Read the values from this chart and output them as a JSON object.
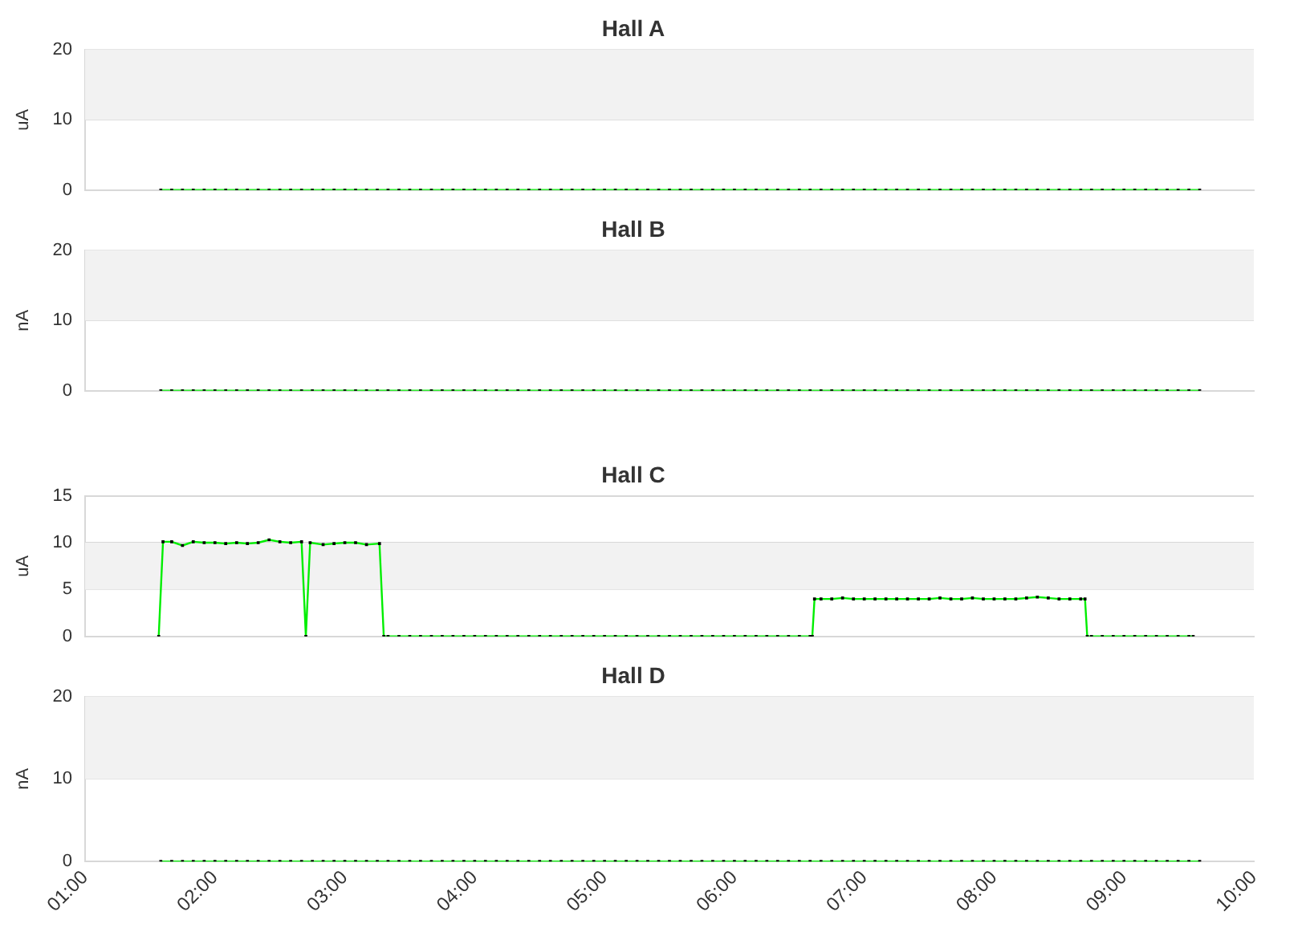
{
  "chart_data": [
    {
      "type": "line",
      "title": "Hall A",
      "ylabel": "uA",
      "ylim": [
        0,
        20
      ],
      "yticks": [
        0,
        10,
        20
      ],
      "xlim": [
        1,
        10
      ],
      "bands": [
        {
          "axis": "y",
          "from": 10,
          "to": 20,
          "color": "#f2f2f2"
        }
      ],
      "grid": "y",
      "marker": "square",
      "tick_labels": "y",
      "x": [
        1.583,
        1.667,
        1.75,
        1.833,
        1.917,
        2,
        2.083,
        2.167,
        2.25,
        2.333,
        2.417,
        2.5,
        2.583,
        2.667,
        2.75,
        2.833,
        2.917,
        3,
        3.083,
        3.167,
        3.25,
        3.333,
        3.417,
        3.5,
        3.583,
        3.667,
        3.75,
        3.833,
        3.917,
        4,
        4.083,
        4.167,
        4.25,
        4.333,
        4.417,
        4.5,
        4.583,
        4.667,
        4.75,
        4.833,
        4.917,
        5,
        5.083,
        5.167,
        5.25,
        5.333,
        5.417,
        5.5,
        5.583,
        5.667,
        5.75,
        5.833,
        5.917,
        6,
        6.083,
        6.167,
        6.25,
        6.333,
        6.417,
        6.5,
        6.583,
        6.667,
        6.75,
        6.833,
        6.917,
        7,
        7.083,
        7.167,
        7.25,
        7.333,
        7.417,
        7.5,
        7.583,
        7.667,
        7.75,
        7.833,
        7.917,
        8,
        8.083,
        8.167,
        8.25,
        8.333,
        8.417,
        8.5,
        8.583,
        8.667,
        8.75,
        8.833,
        8.917,
        9,
        9.083,
        9.167,
        9.25,
        9.333,
        9.417,
        9.5,
        9.583
      ],
      "series": [
        {
          "color": "#00ee00",
          "values": [
            0,
            0,
            0,
            0,
            0,
            0,
            0,
            0,
            0,
            0,
            0,
            0,
            0,
            0,
            0,
            0,
            0,
            0,
            0,
            0,
            0,
            0,
            0,
            0,
            0,
            0,
            0,
            0,
            0,
            0,
            0,
            0,
            0,
            0,
            0,
            0,
            0,
            0,
            0,
            0,
            0,
            0,
            0,
            0,
            0,
            0,
            0,
            0,
            0,
            0,
            0,
            0,
            0,
            0,
            0,
            0,
            0,
            0,
            0,
            0,
            0,
            0,
            0,
            0,
            0,
            0,
            0,
            0,
            0,
            0,
            0,
            0,
            0,
            0,
            0,
            0,
            0,
            0,
            0,
            0,
            0,
            0,
            0,
            0,
            0,
            0,
            0,
            0,
            0,
            0,
            0,
            0,
            0,
            0,
            0,
            0,
            0
          ]
        }
      ]
    },
    {
      "type": "line",
      "title": "Hall B",
      "ylabel": "nA",
      "ylim": [
        0,
        20
      ],
      "yticks": [
        0,
        10,
        20
      ],
      "xlim": [
        1,
        10
      ],
      "bands": [
        {
          "axis": "y",
          "from": 10,
          "to": 20,
          "color": "#f2f2f2"
        }
      ],
      "grid": "y",
      "marker": "square",
      "tick_labels": "y",
      "x": [
        1.583,
        1.667,
        1.75,
        1.833,
        1.917,
        2,
        2.083,
        2.167,
        2.25,
        2.333,
        2.417,
        2.5,
        2.583,
        2.667,
        2.75,
        2.833,
        2.917,
        3,
        3.083,
        3.167,
        3.25,
        3.333,
        3.417,
        3.5,
        3.583,
        3.667,
        3.75,
        3.833,
        3.917,
        4,
        4.083,
        4.167,
        4.25,
        4.333,
        4.417,
        4.5,
        4.583,
        4.667,
        4.75,
        4.833,
        4.917,
        5,
        5.083,
        5.167,
        5.25,
        5.333,
        5.417,
        5.5,
        5.583,
        5.667,
        5.75,
        5.833,
        5.917,
        6,
        6.083,
        6.167,
        6.25,
        6.333,
        6.417,
        6.5,
        6.583,
        6.667,
        6.75,
        6.833,
        6.917,
        7,
        7.083,
        7.167,
        7.25,
        7.333,
        7.417,
        7.5,
        7.583,
        7.667,
        7.75,
        7.833,
        7.917,
        8,
        8.083,
        8.167,
        8.25,
        8.333,
        8.417,
        8.5,
        8.583,
        8.667,
        8.75,
        8.833,
        8.917,
        9,
        9.083,
        9.167,
        9.25,
        9.333,
        9.417,
        9.5,
        9.583
      ],
      "series": [
        {
          "color": "#00ee00",
          "values": [
            0,
            0,
            0,
            0,
            0,
            0,
            0,
            0,
            0,
            0,
            0,
            0,
            0,
            0,
            0,
            0,
            0,
            0,
            0,
            0,
            0,
            0,
            0,
            0,
            0,
            0,
            0,
            0,
            0,
            0,
            0,
            0,
            0,
            0,
            0,
            0,
            0,
            0,
            0,
            0,
            0,
            0,
            0,
            0,
            0,
            0,
            0,
            0,
            0,
            0,
            0,
            0,
            0,
            0,
            0,
            0,
            0,
            0,
            0,
            0,
            0,
            0,
            0,
            0,
            0,
            0,
            0,
            0,
            0,
            0,
            0,
            0,
            0,
            0,
            0,
            0,
            0,
            0,
            0,
            0,
            0,
            0,
            0,
            0,
            0,
            0,
            0,
            0,
            0,
            0,
            0,
            0,
            0,
            0,
            0,
            0,
            0
          ]
        }
      ]
    },
    {
      "type": "line",
      "title": "Hall C",
      "ylabel": "uA",
      "ylim": [
        0,
        15
      ],
      "yticks": [
        0,
        5,
        10,
        15
      ],
      "xlim": [
        1,
        10
      ],
      "bands": [
        {
          "axis": "y",
          "from": 5,
          "to": 10,
          "color": "#f2f2f2"
        }
      ],
      "grid": "y",
      "marker": "square",
      "tick_labels": "y",
      "x": [
        1.567,
        1.6,
        1.667,
        1.75,
        1.833,
        1.917,
        2,
        2.083,
        2.167,
        2.25,
        2.333,
        2.417,
        2.5,
        2.583,
        2.667,
        2.7,
        2.733,
        2.833,
        2.917,
        3,
        3.083,
        3.167,
        3.267,
        3.3,
        3.333,
        3.417,
        3.5,
        3.583,
        3.667,
        3.75,
        3.833,
        3.917,
        4,
        4.083,
        4.167,
        4.25,
        4.333,
        4.417,
        4.5,
        4.583,
        4.667,
        4.75,
        4.833,
        4.917,
        5,
        5.083,
        5.167,
        5.25,
        5.333,
        5.417,
        5.5,
        5.583,
        5.667,
        5.75,
        5.833,
        5.917,
        6,
        6.083,
        6.167,
        6.25,
        6.333,
        6.417,
        6.5,
        6.583,
        6.6,
        6.617,
        6.667,
        6.75,
        6.833,
        6.917,
        7,
        7.083,
        7.167,
        7.25,
        7.333,
        7.417,
        7.5,
        7.583,
        7.667,
        7.75,
        7.833,
        7.917,
        8,
        8.083,
        8.167,
        8.25,
        8.333,
        8.417,
        8.5,
        8.583,
        8.667,
        8.7,
        8.717,
        8.75,
        8.833,
        8.917,
        9,
        9.083,
        9.167,
        9.25,
        9.333,
        9.417,
        9.5,
        9.533
      ],
      "series": [
        {
          "color": "#00ee00",
          "values": [
            0,
            10.1,
            10.1,
            9.7,
            10.1,
            10,
            10,
            9.9,
            10,
            9.9,
            10,
            10.3,
            10.1,
            10,
            10.1,
            0,
            10,
            9.8,
            9.9,
            10,
            10,
            9.8,
            9.9,
            0,
            0,
            0,
            0,
            0,
            0,
            0,
            0,
            0,
            0,
            0,
            0,
            0,
            0,
            0,
            0,
            0,
            0,
            0,
            0,
            0,
            0,
            0,
            0,
            0,
            0,
            0,
            0,
            0,
            0,
            0,
            0,
            0,
            0,
            0,
            0,
            0,
            0,
            0,
            0,
            0,
            0,
            4,
            4,
            4,
            4.1,
            4,
            4,
            4,
            4,
            4,
            4,
            4,
            4,
            4.1,
            4,
            4,
            4.1,
            4,
            4,
            4,
            4,
            4.1,
            4.2,
            4.1,
            4,
            4,
            4,
            4,
            0,
            0,
            0,
            0,
            0,
            0,
            0,
            0,
            0,
            0,
            0,
            0
          ]
        }
      ]
    },
    {
      "type": "line",
      "title": "Hall D",
      "ylabel": "nA",
      "ylim": [
        0,
        20
      ],
      "yticks": [
        0,
        10,
        20
      ],
      "xlim": [
        1,
        10
      ],
      "bands": [
        {
          "axis": "y",
          "from": 10,
          "to": 20,
          "color": "#f2f2f2"
        }
      ],
      "xticks": [
        {
          "value": 1,
          "label": "01:00"
        },
        {
          "value": 2,
          "label": "02:00"
        },
        {
          "value": 3,
          "label": "03:00"
        },
        {
          "value": 4,
          "label": "04:00"
        },
        {
          "value": 5,
          "label": "05:00"
        },
        {
          "value": 6,
          "label": "06:00"
        },
        {
          "value": 7,
          "label": "07:00"
        },
        {
          "value": 8,
          "label": "08:00"
        },
        {
          "value": 9,
          "label": "09:00"
        },
        {
          "value": 10,
          "label": "10:00"
        }
      ],
      "grid": "y",
      "marker": "square",
      "x": [
        1.583,
        1.667,
        1.75,
        1.833,
        1.917,
        2,
        2.083,
        2.167,
        2.25,
        2.333,
        2.417,
        2.5,
        2.583,
        2.667,
        2.75,
        2.833,
        2.917,
        3,
        3.083,
        3.167,
        3.25,
        3.333,
        3.417,
        3.5,
        3.583,
        3.667,
        3.75,
        3.833,
        3.917,
        4,
        4.083,
        4.167,
        4.25,
        4.333,
        4.417,
        4.5,
        4.583,
        4.667,
        4.75,
        4.833,
        4.917,
        5,
        5.083,
        5.167,
        5.25,
        5.333,
        5.417,
        5.5,
        5.583,
        5.667,
        5.75,
        5.833,
        5.917,
        6,
        6.083,
        6.167,
        6.25,
        6.333,
        6.417,
        6.5,
        6.583,
        6.667,
        6.75,
        6.833,
        6.917,
        7,
        7.083,
        7.167,
        7.25,
        7.333,
        7.417,
        7.5,
        7.583,
        7.667,
        7.75,
        7.833,
        7.917,
        8,
        8.083,
        8.167,
        8.25,
        8.333,
        8.417,
        8.5,
        8.583,
        8.667,
        8.75,
        8.833,
        8.917,
        9,
        9.083,
        9.167,
        9.25,
        9.333,
        9.417,
        9.5,
        9.583
      ],
      "series": [
        {
          "color": "#00ee00",
          "values": [
            0,
            0,
            0,
            0,
            0,
            0,
            0,
            0,
            0,
            0,
            0,
            0,
            0,
            0,
            0,
            0,
            0,
            0,
            0,
            0,
            0,
            0,
            0,
            0,
            0,
            0,
            0,
            0,
            0,
            0,
            0,
            0,
            0,
            0,
            0,
            0,
            0,
            0,
            0,
            0,
            0,
            0,
            0,
            0,
            0,
            0,
            0,
            0,
            0,
            0,
            0,
            0,
            0,
            0,
            0,
            0,
            0,
            0,
            0,
            0,
            0,
            0,
            0,
            0,
            0,
            0,
            0,
            0,
            0,
            0,
            0,
            0,
            0,
            0,
            0,
            0,
            0,
            0,
            0,
            0,
            0,
            0,
            0,
            0,
            0,
            0,
            0,
            0,
            0,
            0,
            0,
            0,
            0,
            0,
            0,
            0,
            0
          ]
        }
      ]
    }
  ]
}
